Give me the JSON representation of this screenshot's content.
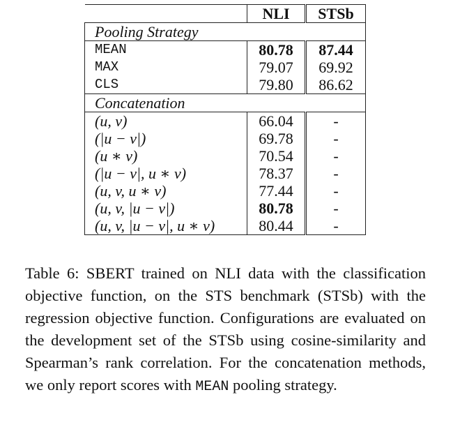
{
  "table": {
    "header": {
      "col1": "",
      "col2": "NLI",
      "col3": "STSb"
    },
    "sections": [
      {
        "title": "Pooling Strategy",
        "rows": [
          {
            "label": "MEAN",
            "nli": "80.78",
            "stsb": "87.44",
            "nli_bold": true,
            "stsb_bold": true,
            "mono": true
          },
          {
            "label": "MAX",
            "nli": "79.07",
            "stsb": "69.92",
            "mono": true
          },
          {
            "label": "CLS",
            "nli": "79.80",
            "stsb": "86.62",
            "mono": true
          }
        ]
      },
      {
        "title": "Concatenation",
        "rows": [
          {
            "label": "(u, v)",
            "nli": "66.04",
            "stsb": "-"
          },
          {
            "label": "(|u − v|)",
            "nli": "69.78",
            "stsb": "-"
          },
          {
            "label": "(u ∗ v)",
            "nli": "70.54",
            "stsb": "-"
          },
          {
            "label": "(|u − v|, u ∗ v)",
            "nli": "78.37",
            "stsb": "-"
          },
          {
            "label": "(u, v, u ∗ v)",
            "nli": "77.44",
            "stsb": "-"
          },
          {
            "label": "(u, v, |u − v|)",
            "nli": "80.78",
            "stsb": "-",
            "nli_bold": true
          },
          {
            "label": "(u, v, |u − v|, u ∗ v)",
            "nli": "80.44",
            "stsb": "-"
          }
        ]
      }
    ]
  },
  "caption": {
    "part1": "Table 6: SBERT trained on NLI data with the classification objective function, on the STS benchmark (STSb) with the regression objective function. Configurations are evaluated on the development set of the STSb using cosine-similarity and Spearman’s rank correlation. For the concatenation methods, we only report scores with ",
    "mono_word": "MEAN",
    "part2": " pooling strategy."
  }
}
